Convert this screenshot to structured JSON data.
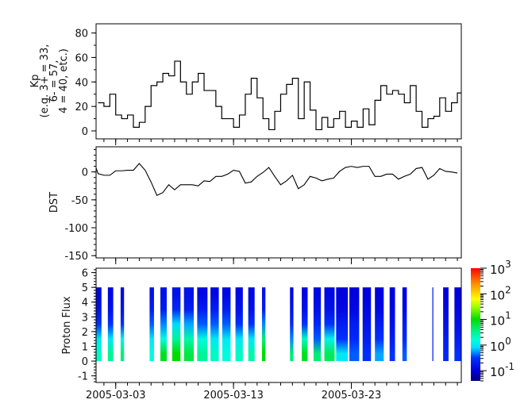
{
  "chart_data": [
    {
      "type": "line",
      "step": true,
      "ylabel": [
        "Kp",
        "(e.g. 3+ = 33,",
        "6- = 57,",
        "4 = 40, etc.)"
      ],
      "ylim": [
        -6.5,
        87.5
      ],
      "yticks": [
        "0",
        "20",
        "40",
        "60",
        "80"
      ],
      "ytick_values": [
        0,
        20,
        40,
        60,
        80
      ],
      "grid": false,
      "color": "#000000",
      "x": [
        "2005-03-01T12:00",
        "2005-03-02T00:00",
        "2005-03-02T12:00",
        "2005-03-03T00:00",
        "2005-03-03T12:00",
        "2005-03-04T00:00",
        "2005-03-04T12:00",
        "2005-03-05T00:00",
        "2005-03-05T12:00",
        "2005-03-06T00:00",
        "2005-03-06T12:00",
        "2005-03-07T00:00",
        "2005-03-07T12:00",
        "2005-03-08T00:00",
        "2005-03-08T12:00",
        "2005-03-09T00:00",
        "2005-03-09T12:00",
        "2005-03-10T00:00",
        "2005-03-10T12:00",
        "2005-03-11T00:00",
        "2005-03-11T12:00",
        "2005-03-12T00:00",
        "2005-03-12T12:00",
        "2005-03-13T00:00",
        "2005-03-13T12:00",
        "2005-03-14T00:00",
        "2005-03-14T12:00",
        "2005-03-15T00:00",
        "2005-03-15T12:00",
        "2005-03-16T00:00",
        "2005-03-16T12:00",
        "2005-03-17T00:00",
        "2005-03-17T12:00",
        "2005-03-18T00:00",
        "2005-03-18T12:00",
        "2005-03-19T00:00",
        "2005-03-19T12:00",
        "2005-03-20T00:00",
        "2005-03-20T12:00",
        "2005-03-21T00:00",
        "2005-03-21T12:00",
        "2005-03-22T00:00",
        "2005-03-22T12:00",
        "2005-03-23T00:00",
        "2005-03-23T12:00",
        "2005-03-24T00:00",
        "2005-03-24T12:00",
        "2005-03-25T00:00",
        "2005-03-25T12:00",
        "2005-03-26T00:00",
        "2005-03-26T12:00",
        "2005-03-27T00:00",
        "2005-03-27T12:00",
        "2005-03-28T00:00",
        "2005-03-28T12:00",
        "2005-03-29T00:00",
        "2005-03-29T12:00",
        "2005-03-30T00:00",
        "2005-03-30T12:00",
        "2005-03-31T00:00",
        "2005-03-31T12:00",
        "2005-04-01T00:00"
      ],
      "y": [
        23,
        20,
        30,
        13,
        10,
        13,
        3,
        7,
        20,
        37,
        40,
        47,
        45,
        57,
        40,
        30,
        40,
        47,
        33,
        33,
        20,
        10,
        10,
        3,
        13,
        30,
        43,
        27,
        10,
        1,
        16,
        30,
        38,
        43,
        10,
        40,
        17,
        1,
        11,
        3,
        10,
        16,
        3,
        8,
        3,
        18,
        5,
        25,
        37,
        30,
        33,
        30,
        23,
        37,
        16,
        3,
        10,
        12,
        27,
        16,
        23,
        31
      ]
    },
    {
      "type": "line",
      "ylabel": "DST",
      "ylim": [
        -154,
        45
      ],
      "yticks": [
        "0",
        "-50",
        "-100",
        "-150"
      ],
      "ytick_values": [
        0,
        -50,
        -100,
        -150
      ],
      "grid": false,
      "color": "#000000",
      "y": [
        -3,
        -6,
        -6,
        2,
        2,
        3,
        3,
        15,
        3,
        -18,
        -42,
        -37,
        -23,
        -32,
        -23,
        -23,
        -23,
        -25,
        -16,
        -17,
        -8,
        -8,
        -4,
        3,
        1,
        -20,
        -18,
        -8,
        -1,
        8,
        -8,
        -23,
        -16,
        -6,
        -30,
        -23,
        -8,
        -11,
        -16,
        -13,
        -11,
        1,
        8,
        10,
        8,
        10,
        10,
        -8,
        -8,
        -4,
        -4,
        -13,
        -8,
        -4,
        6,
        8,
        -13,
        -6,
        6,
        1,
        0,
        -2
      ]
    },
    {
      "type": "heatmap",
      "ylabel": "Proton Flux",
      "ylim": [
        -1.45,
        6.3
      ],
      "yticks": [
        "-1",
        "0",
        "1",
        "2",
        "3",
        "4",
        "5",
        "6"
      ],
      "ytick_values": [
        -1,
        0,
        1,
        2,
        3,
        4,
        5,
        6
      ],
      "channels": [
        0,
        1,
        2,
        3,
        4
      ],
      "colorbar": {
        "scale": "log",
        "range": [
          0.04,
          1000
        ],
        "ticks": [
          {
            "base": "10",
            "exp": "3",
            "value": 1000
          },
          {
            "base": "10",
            "exp": "2",
            "value": 100
          },
          {
            "base": "10",
            "exp": "1",
            "value": 10
          },
          {
            "base": "10",
            "exp": "0",
            "value": 1
          },
          {
            "base": "10",
            "exp": "-1",
            "value": 0.1
          }
        ],
        "colormap": "rainbow"
      },
      "intervals": [
        {
          "start": "2005-03-01T06:00",
          "end": "2005-03-01T19:00",
          "flux": [
            2,
            1,
            0.3,
            0.15,
            0.12
          ]
        },
        {
          "start": "2005-03-02T08:00",
          "end": "2005-03-02T19:00",
          "flux": [
            3,
            1,
            0.3,
            0.15,
            0.12
          ]
        },
        {
          "start": "2005-03-03T10:00",
          "end": "2005-03-03T17:00",
          "flux": [
            4,
            1.2,
            0.3,
            0.15,
            0.12
          ]
        },
        {
          "start": "2005-03-05T21:00",
          "end": "2005-03-06T06:00",
          "flux": [
            1.5,
            1,
            0.4,
            0.2,
            0.15
          ]
        },
        {
          "start": "2005-03-06T19:00",
          "end": "2005-03-07T08:00",
          "flux": [
            8,
            1.5,
            0.5,
            0.2,
            0.15
          ]
        },
        {
          "start": "2005-03-07T19:00",
          "end": "2005-03-08T12:00",
          "flux": [
            10,
            3,
            0.8,
            0.25,
            0.15
          ]
        },
        {
          "start": "2005-03-08T19:00",
          "end": "2005-03-09T15:00",
          "flux": [
            6,
            2.5,
            0.6,
            0.2,
            0.15
          ]
        },
        {
          "start": "2005-03-09T22:00",
          "end": "2005-03-10T19:00",
          "flux": [
            3,
            1.5,
            0.4,
            0.2,
            0.12
          ]
        },
        {
          "start": "2005-03-11T01:00",
          "end": "2005-03-11T18:00",
          "flux": [
            2,
            1,
            0.4,
            0.2,
            0.12
          ]
        },
        {
          "start": "2005-03-12T01:00",
          "end": "2005-03-12T18:00",
          "flux": [
            1.5,
            1,
            0.4,
            0.2,
            0.12
          ]
        },
        {
          "start": "2005-03-13T04:00",
          "end": "2005-03-13T19:00",
          "flux": [
            2,
            1,
            0.3,
            0.15,
            0.12
          ]
        },
        {
          "start": "2005-03-14T06:00",
          "end": "2005-03-14T19:00",
          "flux": [
            2.5,
            1,
            0.3,
            0.15,
            0.12
          ]
        },
        {
          "start": "2005-03-15T10:00",
          "end": "2005-03-15T17:00",
          "flux": [
            10,
            4,
            0.5,
            0.2,
            0.15
          ]
        },
        {
          "start": "2005-03-17T19:00",
          "end": "2005-03-18T02:00",
          "flux": [
            4,
            0.5,
            0.25,
            0.15,
            0.12
          ]
        },
        {
          "start": "2005-03-18T19:00",
          "end": "2005-03-19T07:00",
          "flux": [
            8,
            2,
            0.3,
            0.15,
            0.12
          ]
        },
        {
          "start": "2005-03-19T19:00",
          "end": "2005-03-20T10:00",
          "flux": [
            4,
            0.4,
            0.25,
            0.15,
            0.12
          ]
        },
        {
          "start": "2005-03-20T17:00",
          "end": "2005-03-21T14:00",
          "flux": [
            5,
            1.2,
            0.3,
            0.15,
            0.12
          ]
        },
        {
          "start": "2005-03-21T17:00",
          "end": "2005-03-22T17:00",
          "flux": [
            1,
            0.3,
            0.2,
            0.12,
            0.1
          ]
        },
        {
          "start": "2005-03-22T20:00",
          "end": "2005-03-23T16:00",
          "flux": [
            0.4,
            0.25,
            0.2,
            0.12,
            0.1
          ]
        },
        {
          "start": "2005-03-23T23:00",
          "end": "2005-03-24T16:00",
          "flux": [
            0.3,
            0.2,
            0.15,
            0.12,
            0.1
          ]
        },
        {
          "start": "2005-03-25T00:00",
          "end": "2005-03-25T18:00",
          "flux": [
            0.6,
            0.3,
            0.2,
            0.12,
            0.1
          ]
        },
        {
          "start": "2005-03-26T06:00",
          "end": "2005-03-26T17:00",
          "flux": [
            0.3,
            0.2,
            0.15,
            0.12,
            0.1
          ]
        },
        {
          "start": "2005-03-27T08:00",
          "end": "2005-03-27T17:00",
          "flux": [
            0.4,
            0.25,
            0.2,
            0.12,
            0.1
          ]
        },
        {
          "start": "2005-03-29T21:00",
          "end": "2005-03-29T23:00",
          "flux": [
            0.2,
            0.2,
            0.2,
            0.2,
            0.2
          ]
        },
        {
          "start": "2005-03-30T19:00",
          "end": "2005-03-31T06:00",
          "flux": [
            0.25,
            0.2,
            0.15,
            0.12,
            0.1
          ]
        },
        {
          "start": "2005-03-31T18:00",
          "end": "2005-04-01T08:00",
          "flux": [
            0.3,
            0.2,
            0.15,
            0.12,
            0.1
          ]
        }
      ]
    }
  ],
  "xaxis": {
    "xlim": [
      "2005-03-01T08:00",
      "2005-04-01T08:00"
    ],
    "major_ticks": [
      "2005-03-03",
      "2005-03-13",
      "2005-03-23"
    ],
    "minor_tick_interval": "1 day"
  }
}
